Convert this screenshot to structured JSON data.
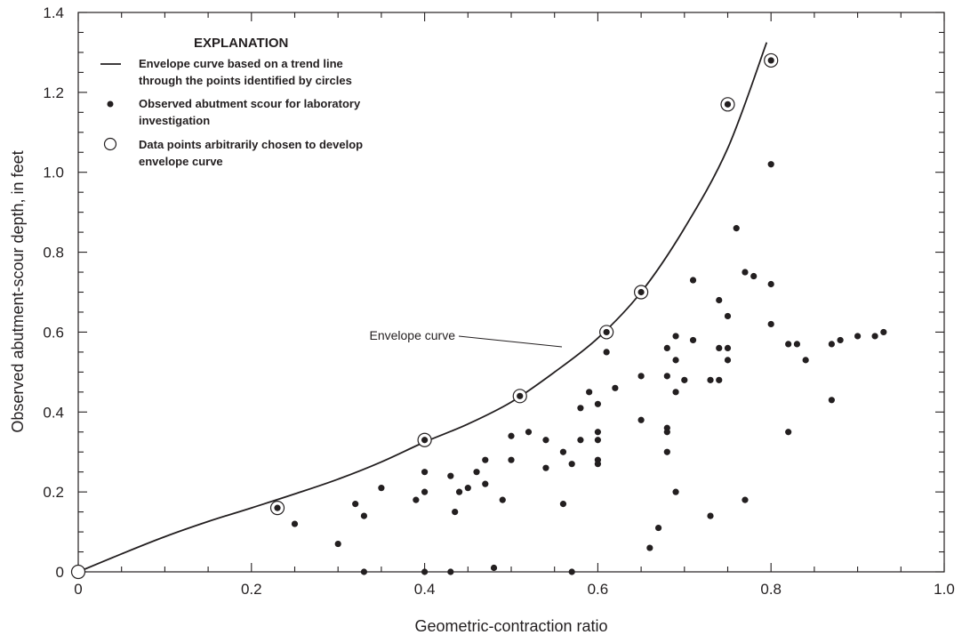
{
  "chart_data": {
    "type": "scatter",
    "xlabel": "Geometric-contraction ratio",
    "ylabel": "Observed abutment-scour depth, in feet",
    "xlim": [
      0,
      1.0
    ],
    "ylim": [
      0,
      1.4
    ],
    "x_ticks": [
      "0",
      "0.2",
      "0.4",
      "0.6",
      "0.8",
      "1.0"
    ],
    "y_ticks": [
      "0",
      "0.2",
      "0.4",
      "0.6",
      "0.8",
      "1.0",
      "1.2",
      "1.4"
    ],
    "grid": false,
    "legend": {
      "title": "EXPLANATION",
      "placement": "top-left",
      "entries": [
        {
          "marker": "line",
          "lines": [
            "Envelope curve based on a trend line",
            "through the points identified by circles"
          ]
        },
        {
          "marker": "dot",
          "lines": [
            "Observed abutment scour for laboratory",
            "investigation"
          ]
        },
        {
          "marker": "circle",
          "lines": [
            "Data points arbitrarily chosen to develop",
            "envelope curve"
          ]
        }
      ]
    },
    "annotation": {
      "text": "Envelope curve",
      "x": 0.55,
      "y": 0.6
    },
    "envelope_curve": {
      "x": [
        0,
        0.05,
        0.1,
        0.15,
        0.2,
        0.25,
        0.3,
        0.35,
        0.4,
        0.45,
        0.5,
        0.55,
        0.6,
        0.65,
        0.7,
        0.75,
        0.795
      ],
      "y": [
        0,
        0.045,
        0.088,
        0.126,
        0.16,
        0.195,
        0.232,
        0.275,
        0.325,
        0.37,
        0.425,
        0.5,
        0.585,
        0.7,
        0.86,
        1.06,
        1.325
      ]
    },
    "circled_points": [
      [
        0,
        0
      ],
      [
        0.23,
        0.16
      ],
      [
        0.4,
        0.33
      ],
      [
        0.51,
        0.44
      ],
      [
        0.61,
        0.6
      ],
      [
        0.65,
        0.7
      ],
      [
        0.75,
        1.17
      ],
      [
        0.8,
        1.28
      ]
    ],
    "observed_points": [
      [
        0.25,
        0.12
      ],
      [
        0.3,
        0.07
      ],
      [
        0.32,
        0.17
      ],
      [
        0.33,
        0.14
      ],
      [
        0.33,
        0.0
      ],
      [
        0.35,
        0.21
      ],
      [
        0.39,
        0.18
      ],
      [
        0.4,
        0.2
      ],
      [
        0.4,
        0.25
      ],
      [
        0.4,
        0.0
      ],
      [
        0.43,
        0.24
      ],
      [
        0.43,
        0.0
      ],
      [
        0.435,
        0.15
      ],
      [
        0.44,
        0.2
      ],
      [
        0.45,
        0.21
      ],
      [
        0.46,
        0.25
      ],
      [
        0.47,
        0.28
      ],
      [
        0.47,
        0.22
      ],
      [
        0.48,
        0.01
      ],
      [
        0.49,
        0.18
      ],
      [
        0.5,
        0.34
      ],
      [
        0.5,
        0.28
      ],
      [
        0.52,
        0.35
      ],
      [
        0.54,
        0.33
      ],
      [
        0.54,
        0.26
      ],
      [
        0.56,
        0.3
      ],
      [
        0.56,
        0.17
      ],
      [
        0.57,
        0.27
      ],
      [
        0.57,
        0.0
      ],
      [
        0.58,
        0.33
      ],
      [
        0.58,
        0.41
      ],
      [
        0.59,
        0.45
      ],
      [
        0.6,
        0.42
      ],
      [
        0.6,
        0.35
      ],
      [
        0.6,
        0.33
      ],
      [
        0.6,
        0.28
      ],
      [
        0.6,
        0.27
      ],
      [
        0.61,
        0.55
      ],
      [
        0.62,
        0.46
      ],
      [
        0.65,
        0.49
      ],
      [
        0.65,
        0.38
      ],
      [
        0.66,
        0.06
      ],
      [
        0.67,
        0.11
      ],
      [
        0.68,
        0.56
      ],
      [
        0.68,
        0.49
      ],
      [
        0.68,
        0.36
      ],
      [
        0.68,
        0.35
      ],
      [
        0.68,
        0.3
      ],
      [
        0.69,
        0.59
      ],
      [
        0.69,
        0.53
      ],
      [
        0.69,
        0.45
      ],
      [
        0.69,
        0.2
      ],
      [
        0.7,
        0.48
      ],
      [
        0.71,
        0.73
      ],
      [
        0.71,
        0.58
      ],
      [
        0.73,
        0.48
      ],
      [
        0.73,
        0.14
      ],
      [
        0.74,
        0.68
      ],
      [
        0.74,
        0.56
      ],
      [
        0.74,
        0.48
      ],
      [
        0.75,
        0.64
      ],
      [
        0.75,
        0.56
      ],
      [
        0.75,
        0.53
      ],
      [
        0.76,
        0.86
      ],
      [
        0.77,
        0.75
      ],
      [
        0.77,
        0.18
      ],
      [
        0.78,
        0.74
      ],
      [
        0.8,
        1.02
      ],
      [
        0.8,
        0.72
      ],
      [
        0.8,
        0.62
      ],
      [
        0.82,
        0.57
      ],
      [
        0.82,
        0.35
      ],
      [
        0.83,
        0.57
      ],
      [
        0.84,
        0.53
      ],
      [
        0.87,
        0.57
      ],
      [
        0.87,
        0.43
      ],
      [
        0.88,
        0.58
      ],
      [
        0.9,
        0.59
      ],
      [
        0.92,
        0.59
      ],
      [
        0.93,
        0.6
      ]
    ]
  }
}
